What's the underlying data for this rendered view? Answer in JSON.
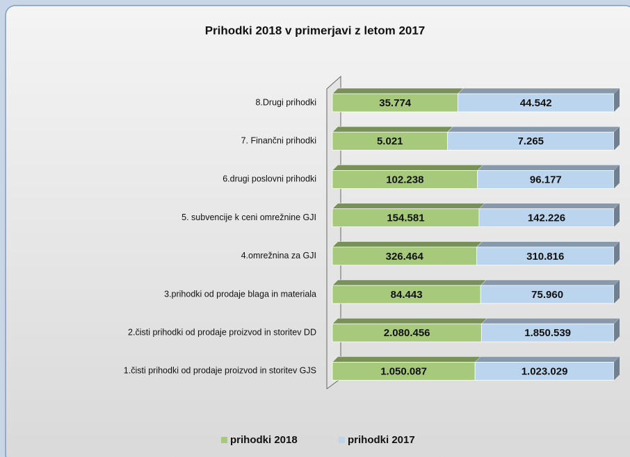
{
  "chart_data": {
    "type": "bar",
    "orientation": "horizontal",
    "stacked": "percent",
    "title": "Prihodki 2018  v primerjavi z letom 2017",
    "categories": [
      "8.Drugi prihodki",
      "7. Finančni prihodki",
      "6.drugi poslovni prihodki",
      "5. subvencije k ceni omrežnine GJI",
      "4.omrežnina za GJI",
      "3.prihodki od prodaje blaga in materiala",
      "2.čisti prihodki od prodaje proizvod in storitev DD",
      "1.čisti prihodki od prodaje proizvod in storitev GJS"
    ],
    "series": [
      {
        "name": "prihodki 2018",
        "color": "#a6c97c",
        "values": [
          35774,
          5021,
          102238,
          154581,
          326464,
          84443,
          2080456,
          1050087
        ],
        "value_labels": [
          "35.774",
          "5.021",
          "102.238",
          "154.581",
          "326.464",
          "84.443",
          "2.080.456",
          "1.050.087"
        ]
      },
      {
        "name": "prihodki 2017",
        "color": "#bcd5ee",
        "values": [
          44542,
          7265,
          96177,
          142226,
          310816,
          75960,
          1850539,
          1023029
        ],
        "value_labels": [
          "44.542",
          "7.265",
          "96.177",
          "142.226",
          "310.816",
          "75.960",
          "1.850.539",
          "1.023.029"
        ]
      }
    ],
    "legend": "bottom"
  }
}
